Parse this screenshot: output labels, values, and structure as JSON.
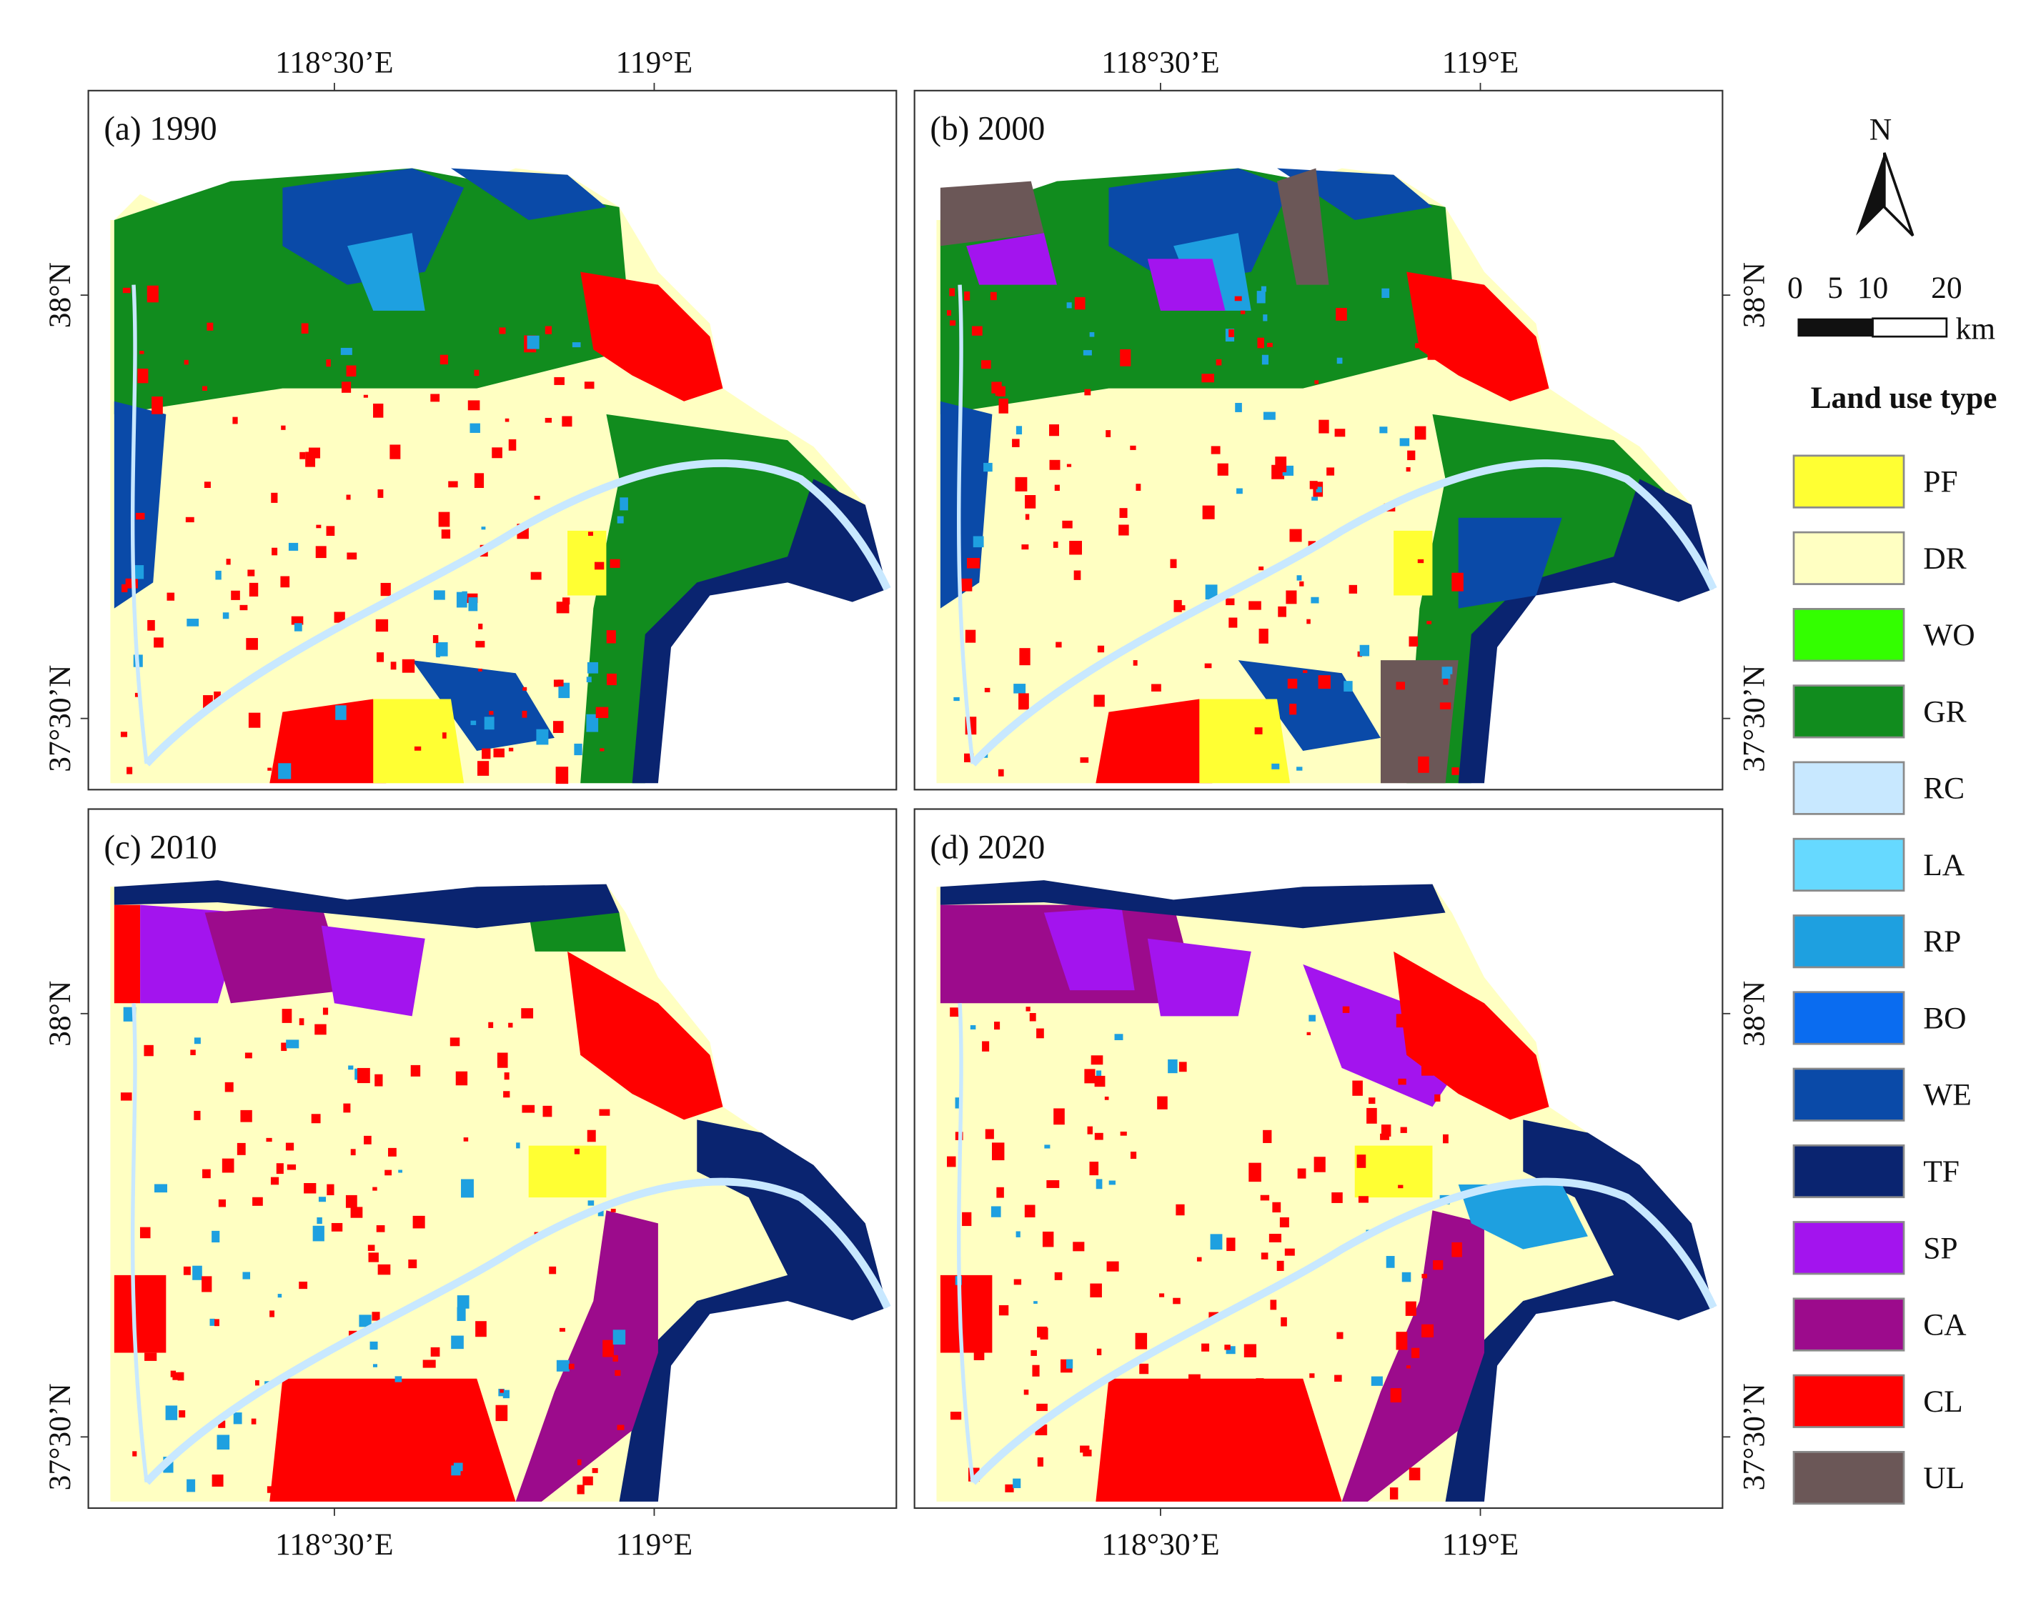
{
  "panels": [
    {
      "label": "(a) 1990",
      "lon_labels": [
        "118°30’E",
        "119°E"
      ],
      "lat_labels": [
        "38°N",
        "37°30’N"
      ]
    },
    {
      "label": "(b) 2000",
      "lon_labels": [
        "118°30’E",
        "119°E"
      ],
      "lat_labels": [
        "38°N",
        "37°30’N"
      ]
    },
    {
      "label": "(c) 2010",
      "lon_labels": [
        "118°30’E",
        "119°E"
      ],
      "lat_labels": [
        "38°N",
        "37°30’N"
      ]
    },
    {
      "label": "(d) 2020",
      "lon_labels": [
        "118°30’E",
        "119°E"
      ],
      "lat_labels": [
        "38°N",
        "37°30’N"
      ]
    }
  ],
  "north_arrow": {
    "label": "N"
  },
  "scale_bar": {
    "labels": [
      "0",
      "5",
      "10",
      "20"
    ],
    "unit": "km"
  },
  "legend": {
    "title": "Land use type",
    "items": [
      {
        "name": "PF",
        "color": "#ffff33"
      },
      {
        "name": "DR",
        "color": "#ffffc2"
      },
      {
        "name": "WO",
        "color": "#33ff00"
      },
      {
        "name": "GR",
        "color": "#118c1e"
      },
      {
        "name": "RC",
        "color": "#c8e8ff"
      },
      {
        "name": "LA",
        "color": "#66d9ff"
      },
      {
        "name": "RP",
        "color": "#1ea0e0"
      },
      {
        "name": "BO",
        "color": "#0a6cf0"
      },
      {
        "name": "WE",
        "color": "#0a4aa8"
      },
      {
        "name": "TF",
        "color": "#0a2470"
      },
      {
        "name": "SP",
        "color": "#a314ee"
      },
      {
        "name": "CA",
        "color": "#9c0b8c"
      },
      {
        "name": "CL",
        "color": "#ff0000"
      },
      {
        "name": "UL",
        "color": "#6b5757"
      }
    ]
  }
}
